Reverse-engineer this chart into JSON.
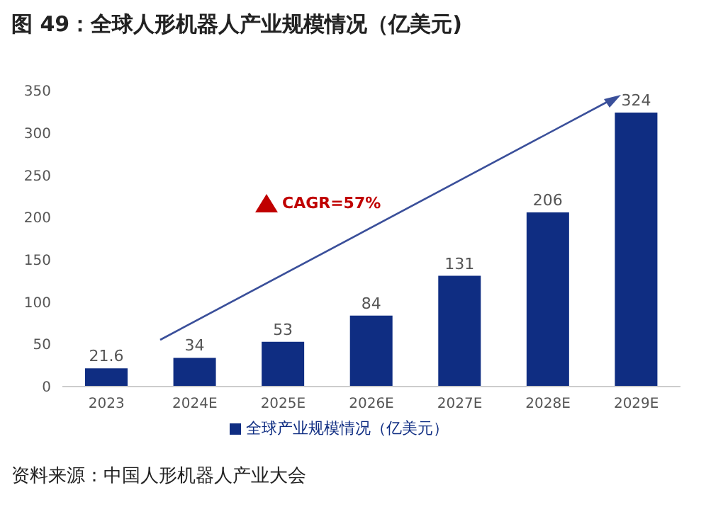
{
  "chart_data": {
    "type": "bar",
    "title": "图 49：全球人形机器人产业规模情况（亿美元)",
    "categories": [
      "2023",
      "2024E",
      "2025E",
      "2026E",
      "2027E",
      "2028E",
      "2029E"
    ],
    "series": [
      {
        "name": "全球产业规模情况（亿美元）",
        "color": "#0f2d82",
        "values": [
          21.6,
          34,
          53,
          84,
          131,
          206,
          324
        ]
      }
    ],
    "ylim": [
      0,
      350
    ],
    "yticks": [
      0,
      50,
      100,
      150,
      200,
      250,
      300,
      350
    ],
    "grid": false,
    "legend": "bottom",
    "data_labels": true,
    "annotations": [
      "CAGR=57%",
      "资料来源：中国人形机器人产业大会"
    ]
  }
}
